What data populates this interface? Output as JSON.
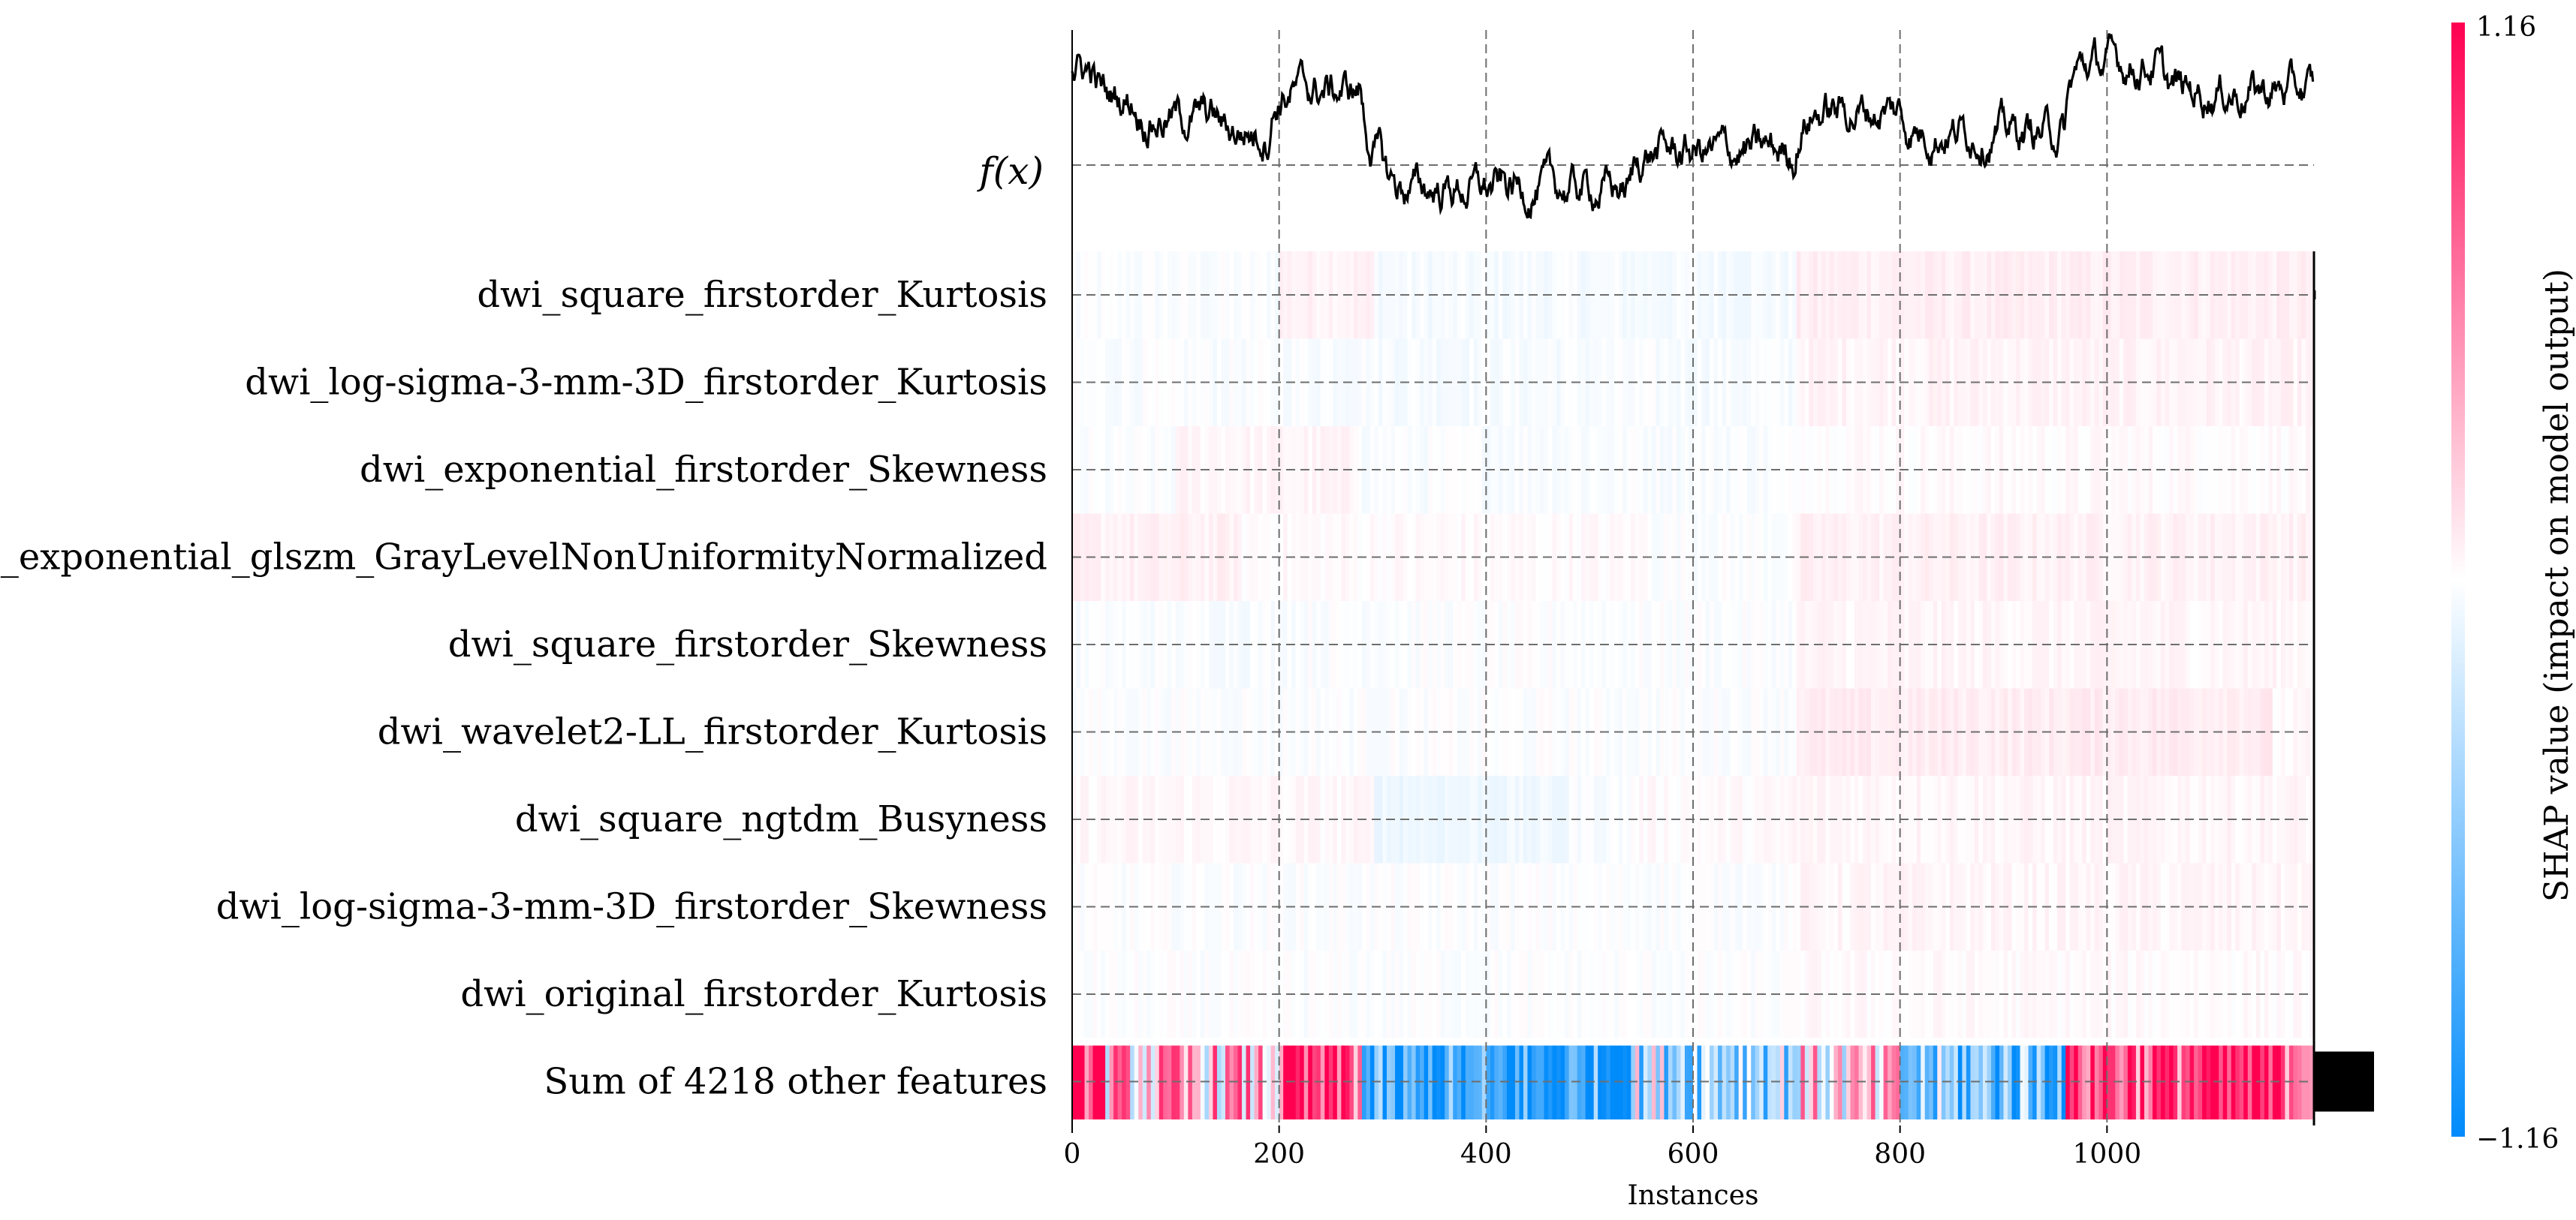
{
  "chart_data": {
    "type": "heatmap",
    "subtype": "shap-heatmap",
    "xlabel": "Instances",
    "x_ticks": [
      0,
      200,
      400,
      600,
      800,
      1000
    ],
    "x_range": [
      0,
      1200
    ],
    "n_instances": 1200,
    "top_panel_label": "f(x)",
    "features": [
      "dwi_square_firstorder_Kurtosis",
      "dwi_log-sigma-3-mm-3D_firstorder_Kurtosis",
      "dwi_exponential_firstorder_Skewness",
      "dwi_exponential_glszm_GrayLevelNonUniformityNormalized",
      "dwi_square_firstorder_Skewness",
      "dwi_wavelet2-LL_firstorder_Kurtosis",
      "dwi_square_ngtdm_Busyness",
      "dwi_log-sigma-3-mm-3D_firstorder_Skewness",
      "dwi_original_firstorder_Kurtosis",
      "Sum of 4218 other features"
    ],
    "feature_importance": [
      0.01,
      0.005,
      0.004,
      0.004,
      0.003,
      0.003,
      0.003,
      0.002,
      0.002,
      0.33
    ],
    "colorbar": {
      "label": "SHAP value (impact on model output)",
      "max_label": "1.16",
      "min_label": "−1.16",
      "vmin": -1.16,
      "vmax": 1.16
    },
    "segments": {
      "description_values": "approximate mean SHAP per instance range [start, end, value]",
      "row0": [
        [
          0,
          200,
          -0.02
        ],
        [
          200,
          290,
          0.06
        ],
        [
          290,
          700,
          -0.04
        ],
        [
          700,
          1200,
          0.07
        ]
      ],
      "row1": [
        [
          0,
          290,
          -0.02
        ],
        [
          290,
          700,
          -0.03
        ],
        [
          700,
          1200,
          0.05
        ]
      ],
      "row2": [
        [
          0,
          100,
          -0.02
        ],
        [
          100,
          280,
          0.04
        ],
        [
          280,
          700,
          -0.02
        ],
        [
          700,
          1200,
          0.02
        ]
      ],
      "row3": [
        [
          0,
          160,
          0.06
        ],
        [
          160,
          560,
          0.02
        ],
        [
          560,
          700,
          -0.01
        ],
        [
          700,
          1200,
          0.06
        ]
      ],
      "row4": [
        [
          0,
          200,
          -0.02
        ],
        [
          200,
          700,
          -0.01
        ],
        [
          700,
          1200,
          0.04
        ]
      ],
      "row5": [
        [
          0,
          700,
          -0.01
        ],
        [
          700,
          960,
          0.08
        ],
        [
          960,
          1160,
          0.09
        ],
        [
          1160,
          1200,
          0.02
        ]
      ],
      "row6": [
        [
          0,
          290,
          0.03
        ],
        [
          290,
          480,
          -0.07
        ],
        [
          480,
          540,
          -0.02
        ],
        [
          540,
          690,
          0.02
        ],
        [
          690,
          1200,
          0.04
        ]
      ],
      "row7": [
        [
          0,
          700,
          -0.01
        ],
        [
          700,
          1200,
          0.04
        ]
      ],
      "row8": [
        [
          0,
          700,
          -0.01
        ],
        [
          700,
          1200,
          0.02
        ]
      ],
      "row9": [
        [
          0,
          30,
          1.1
        ],
        [
          30,
          200,
          0.3
        ],
        [
          200,
          280,
          0.8
        ],
        [
          280,
          540,
          -1.0
        ],
        [
          540,
          700,
          -0.3
        ],
        [
          700,
          800,
          0.1
        ],
        [
          800,
          960,
          -0.6
        ],
        [
          960,
          1200,
          0.9
        ]
      ]
    },
    "fx_line": {
      "y_range": [
        -1.5,
        1.5
      ],
      "segments": [
        [
          0,
          20,
          0.9
        ],
        [
          20,
          60,
          0.5
        ],
        [
          60,
          140,
          0.2
        ],
        [
          140,
          190,
          0.0
        ],
        [
          190,
          280,
          0.6
        ],
        [
          280,
          300,
          -0.4
        ],
        [
          300,
          540,
          -0.85
        ],
        [
          540,
          700,
          -0.3
        ],
        [
          700,
          800,
          0.3
        ],
        [
          800,
          960,
          0.0
        ],
        [
          960,
          1050,
          1.0
        ],
        [
          1050,
          1200,
          0.6
        ]
      ]
    }
  },
  "colors": {
    "positive": "#ff0051",
    "negative": "#008bfb",
    "neutral": "#ffffff",
    "grid": "#6e6e6e",
    "line": "#000000"
  }
}
